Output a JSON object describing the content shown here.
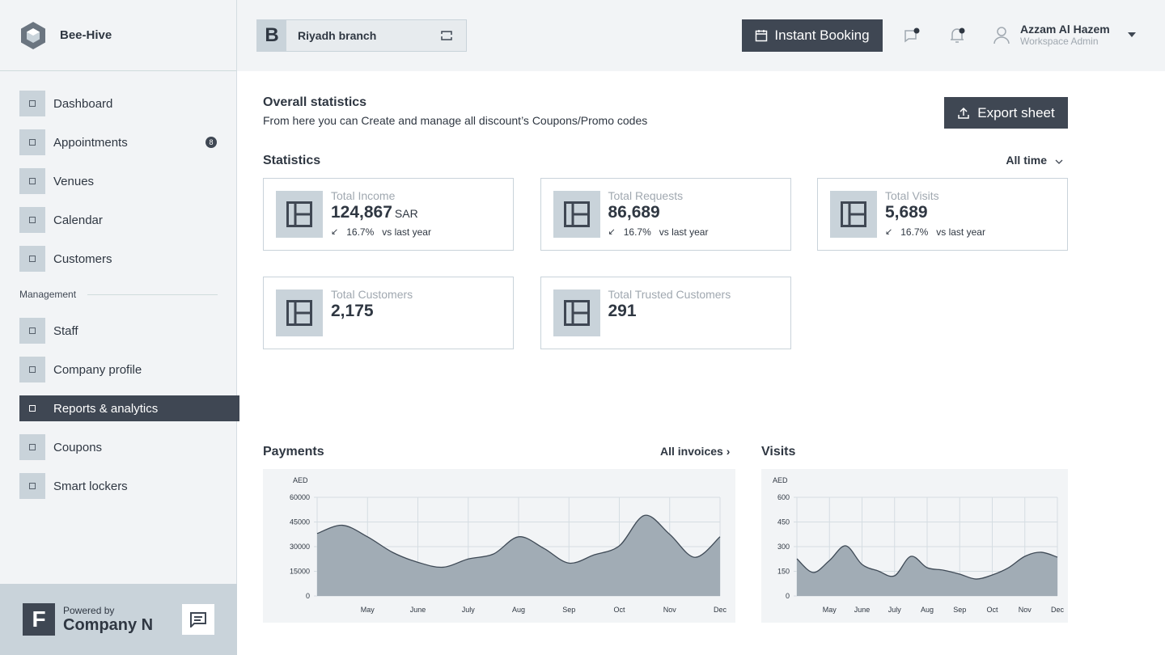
{
  "sidebar": {
    "brand": "Bee-Hive",
    "nav": [
      {
        "label": "Dashboard"
      },
      {
        "label": "Appointments",
        "badge": 8
      },
      {
        "label": "Venues"
      },
      {
        "label": "Calendar"
      },
      {
        "label": "Customers"
      }
    ],
    "section": "Management",
    "management": [
      {
        "label": "Staff"
      },
      {
        "label": "Company profile"
      },
      {
        "label": "Reports & analytics",
        "active": true
      },
      {
        "label": "Coupons"
      },
      {
        "label": "Smart lockers"
      }
    ],
    "footer": {
      "logo": "F",
      "powered": "Powered by",
      "company": "Company N"
    }
  },
  "header": {
    "branch_letter": "B",
    "branch": "Riyadh branch",
    "booking": "Instant Booking",
    "user": "Azzam Al Hazem",
    "role": "Workspace Admin"
  },
  "page": {
    "title": "Overall statistics",
    "subtitle": "From here you can Create and manage all discount’s Coupons/Promo codes",
    "export": "Export sheet",
    "stats_title": "Statistics",
    "filter": "All time",
    "cards": [
      {
        "label": "Total Income",
        "value": "124,867",
        "unit": "SAR",
        "change": "16.7%",
        "compare": "vs last year"
      },
      {
        "label": "Total Requests",
        "value": "86,689",
        "change": "16.7%",
        "compare": "vs last year"
      },
      {
        "label": "Total Visits",
        "value": "5,689",
        "change": "16.7%",
        "compare": "vs last year"
      },
      {
        "label": "Total Customers",
        "value": "2,175"
      },
      {
        "label": "Total Trusted Customers",
        "value": "291"
      }
    ]
  },
  "chart_data": [
    {
      "type": "area",
      "title": "Payments",
      "link": "All invoices",
      "y_label": "AED",
      "color": "#a1acb5",
      "line_color": "#3f4a56",
      "categories": [
        null,
        null,
        "May",
        null,
        "June",
        null,
        "July",
        null,
        "Aug",
        null,
        "Sep",
        null,
        "Oct",
        null,
        "Nov",
        null,
        "Dec"
      ],
      "values": [
        38000,
        43000,
        36000,
        26500,
        20500,
        17500,
        22500,
        25500,
        36000,
        29000,
        20000,
        25000,
        30500,
        49000,
        37500,
        23500,
        36000
      ],
      "ylim": [
        0,
        60000
      ],
      "yticks": [
        0,
        15000,
        30000,
        45000,
        60000
      ],
      "grid": true
    },
    {
      "type": "area",
      "title": "Visits",
      "y_label": "AED",
      "color": "#a1acb5",
      "line_color": "#3f4a56",
      "categories": [
        null,
        null,
        "May",
        null,
        "June",
        null,
        "July",
        null,
        "Aug",
        null,
        "Sep",
        null,
        "Oct",
        null,
        "Nov",
        null,
        "Dec"
      ],
      "values": [
        226,
        143,
        216,
        305,
        192,
        152,
        123,
        241,
        172,
        157,
        133,
        103,
        128,
        172,
        241,
        266,
        236
      ],
      "ylim": [
        0,
        600
      ],
      "yticks": [
        0,
        150,
        300,
        450,
        600
      ],
      "grid": true
    }
  ]
}
